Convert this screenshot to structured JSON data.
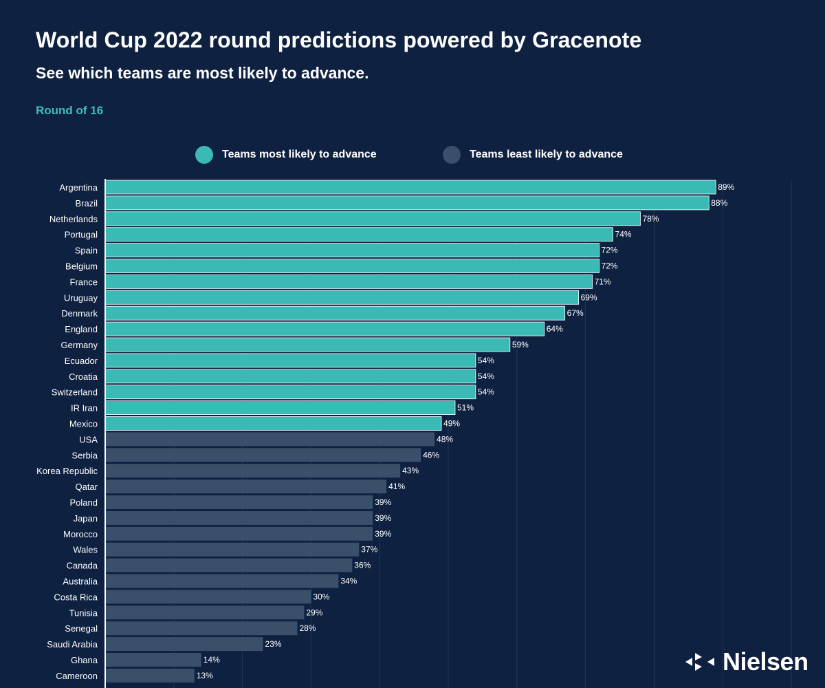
{
  "header": {
    "title": "World Cup 2022 round predictions powered by Gracenote",
    "subtitle": "See which teams are most likely to advance.",
    "round": "Round of 16"
  },
  "legend": {
    "most": "Teams most likely to advance",
    "least": "Teams least likely to advance"
  },
  "colors": {
    "background": "#0f2141",
    "most": "#3ab9b5",
    "least": "#3a4f6a",
    "accent": "#3fbdb9",
    "grid": "#223657",
    "bar_border": "#ffffff"
  },
  "brand": {
    "name": "Nielsen",
    "logo_icon": "nielsen-logo-icon"
  },
  "chart_data": {
    "type": "bar",
    "orientation": "horizontal",
    "title": "World Cup 2022 round predictions powered by Gracenote",
    "subtitle": "See which teams are most likely to advance.",
    "xlim": [
      0,
      100
    ],
    "grid": true,
    "value_suffix": "%",
    "categories": [
      "Argentina",
      "Brazil",
      "Netherlands",
      "Portugal",
      "Spain",
      "Belgium",
      "France",
      "Uruguay",
      "Denmark",
      "England",
      "Germany",
      "Ecuador",
      "Croatia",
      "Switzerland",
      "IR Iran",
      "Mexico",
      "USA",
      "Serbia",
      "Korea Republic",
      "Qatar",
      "Poland",
      "Japan",
      "Morocco",
      "Wales",
      "Canada",
      "Australia",
      "Costa Rica",
      "Tunisia",
      "Senegal",
      "Saudi Arabia",
      "Ghana",
      "Cameroon"
    ],
    "values": [
      89,
      88,
      78,
      74,
      72,
      72,
      71,
      69,
      67,
      64,
      59,
      54,
      54,
      54,
      51,
      49,
      48,
      46,
      43,
      41,
      39,
      39,
      39,
      37,
      36,
      34,
      30,
      29,
      28,
      23,
      14,
      13
    ],
    "labels": [
      "89%",
      "88%",
      "78%",
      "74%",
      "72%",
      "72%",
      "71%",
      "69%",
      "67%",
      "64%",
      "59%",
      "54%",
      "54%",
      "54%",
      "51%",
      "49%",
      "48%",
      "46%",
      "43%",
      "41%",
      "39%",
      "39%",
      "39%",
      "37%",
      "36%",
      "34%",
      "30%",
      "29%",
      "28%",
      "23%",
      "14%",
      "13%"
    ],
    "groups": [
      "most",
      "most",
      "most",
      "most",
      "most",
      "most",
      "most",
      "most",
      "most",
      "most",
      "most",
      "most",
      "most",
      "most",
      "most",
      "most",
      "least",
      "least",
      "least",
      "least",
      "least",
      "least",
      "least",
      "least",
      "least",
      "least",
      "least",
      "least",
      "least",
      "least",
      "least",
      "least"
    ]
  }
}
